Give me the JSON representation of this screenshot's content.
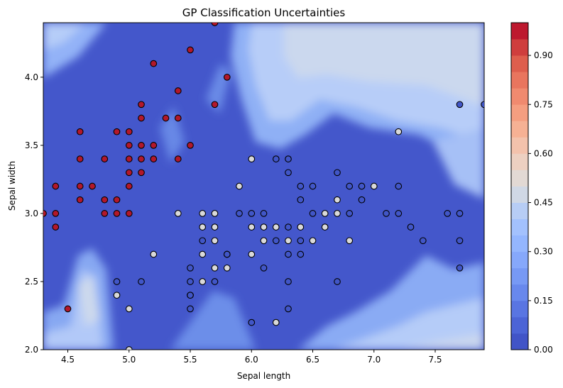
{
  "chart_data": {
    "type": "scatter",
    "title": "GP Classification Uncertainties",
    "xlabel": "Sepal length",
    "ylabel": "Sepal width",
    "xlim": [
      4.3,
      7.9
    ],
    "ylim": [
      2.0,
      4.4
    ],
    "xticks": [
      "4.5",
      "5.0",
      "5.5",
      "6.0",
      "6.5",
      "7.0",
      "7.5"
    ],
    "yticks": [
      "2.0",
      "2.5",
      "3.0",
      "3.5",
      "4.0"
    ],
    "colorbar": {
      "min": 0.0,
      "max": 1.0,
      "ticks": [
        "0.00",
        "0.15",
        "0.30",
        "0.45",
        "0.60",
        "0.75",
        "0.90"
      ],
      "levels": 20,
      "colormap": "coolwarm"
    },
    "background_note": "filled contour of uncertainty: low (blue) across most of the plane, higher (light blue/grey) in the upper-right region and along class boundaries",
    "series": [
      {
        "color": "#b2182b",
        "points": [
          [
            4.3,
            3.0
          ],
          [
            4.4,
            3.0
          ],
          [
            4.4,
            2.9
          ],
          [
            4.4,
            3.2
          ],
          [
            4.5,
            2.3
          ],
          [
            4.6,
            3.1
          ],
          [
            4.6,
            3.4
          ],
          [
            4.6,
            3.6
          ],
          [
            4.6,
            3.2
          ],
          [
            4.7,
            3.2
          ],
          [
            4.8,
            3.0
          ],
          [
            4.8,
            3.1
          ],
          [
            4.8,
            3.4
          ],
          [
            4.9,
            3.0
          ],
          [
            4.9,
            3.1
          ],
          [
            4.9,
            3.6
          ],
          [
            5.0,
            3.0
          ],
          [
            5.0,
            3.2
          ],
          [
            5.0,
            3.3
          ],
          [
            5.0,
            3.4
          ],
          [
            5.0,
            3.5
          ],
          [
            5.0,
            3.6
          ],
          [
            5.1,
            3.3
          ],
          [
            5.1,
            3.4
          ],
          [
            5.1,
            3.5
          ],
          [
            5.1,
            3.7
          ],
          [
            5.1,
            3.8
          ],
          [
            5.2,
            3.4
          ],
          [
            5.2,
            3.5
          ],
          [
            5.2,
            4.1
          ],
          [
            5.3,
            3.7
          ],
          [
            5.4,
            3.4
          ],
          [
            5.4,
            3.7
          ],
          [
            5.4,
            3.9
          ],
          [
            5.5,
            3.5
          ],
          [
            5.5,
            4.2
          ],
          [
            5.7,
            3.8
          ],
          [
            5.7,
            4.4
          ],
          [
            5.8,
            4.0
          ]
        ]
      },
      {
        "color": "#d9d9d9",
        "points": [
          [
            4.9,
            2.4
          ],
          [
            5.0,
            2.0
          ],
          [
            5.0,
            2.3
          ],
          [
            5.2,
            2.7
          ],
          [
            5.4,
            3.0
          ],
          [
            5.5,
            2.4
          ],
          [
            5.6,
            2.5
          ],
          [
            5.6,
            2.7
          ],
          [
            5.6,
            2.9
          ],
          [
            5.6,
            3.0
          ],
          [
            5.7,
            2.6
          ],
          [
            5.7,
            2.8
          ],
          [
            5.7,
            2.9
          ],
          [
            5.7,
            3.0
          ],
          [
            5.8,
            2.6
          ],
          [
            5.8,
            2.7
          ],
          [
            5.9,
            3.2
          ],
          [
            6.0,
            2.7
          ],
          [
            6.0,
            2.9
          ],
          [
            6.0,
            3.4
          ],
          [
            6.1,
            2.8
          ],
          [
            6.1,
            2.9
          ],
          [
            6.2,
            2.2
          ],
          [
            6.2,
            2.9
          ],
          [
            6.3,
            2.8
          ],
          [
            6.4,
            2.9
          ],
          [
            6.5,
            2.8
          ],
          [
            6.6,
            2.9
          ],
          [
            6.6,
            3.0
          ],
          [
            6.7,
            3.0
          ],
          [
            6.7,
            3.1
          ],
          [
            6.8,
            2.8
          ],
          [
            7.0,
            3.2
          ],
          [
            7.2,
            3.6
          ]
        ]
      },
      {
        "color": "#4156c7",
        "points": [
          [
            4.9,
            2.5
          ],
          [
            5.1,
            2.5
          ],
          [
            5.5,
            2.3
          ],
          [
            5.5,
            2.4
          ],
          [
            5.5,
            2.5
          ],
          [
            5.5,
            2.6
          ],
          [
            5.6,
            2.8
          ],
          [
            5.7,
            2.5
          ],
          [
            5.8,
            2.7
          ],
          [
            5.9,
            3.0
          ],
          [
            6.0,
            2.2
          ],
          [
            6.0,
            3.0
          ],
          [
            6.1,
            2.6
          ],
          [
            6.1,
            3.0
          ],
          [
            6.2,
            2.8
          ],
          [
            6.2,
            3.4
          ],
          [
            6.3,
            2.3
          ],
          [
            6.3,
            2.5
          ],
          [
            6.3,
            2.7
          ],
          [
            6.3,
            2.9
          ],
          [
            6.3,
            3.3
          ],
          [
            6.3,
            3.4
          ],
          [
            6.4,
            2.7
          ],
          [
            6.4,
            2.8
          ],
          [
            6.4,
            3.1
          ],
          [
            6.4,
            3.2
          ],
          [
            6.5,
            3.0
          ],
          [
            6.5,
            3.2
          ],
          [
            6.7,
            2.5
          ],
          [
            6.7,
            3.3
          ],
          [
            6.8,
            3.0
          ],
          [
            6.8,
            3.2
          ],
          [
            6.9,
            3.1
          ],
          [
            6.9,
            3.2
          ],
          [
            7.1,
            3.0
          ],
          [
            7.2,
            3.0
          ],
          [
            7.2,
            3.2
          ],
          [
            7.3,
            2.9
          ],
          [
            7.4,
            2.8
          ],
          [
            7.6,
            3.0
          ],
          [
            7.7,
            2.6
          ],
          [
            7.7,
            2.8
          ],
          [
            7.7,
            3.0
          ],
          [
            7.7,
            3.8
          ],
          [
            7.9,
            3.8
          ]
        ]
      }
    ]
  }
}
